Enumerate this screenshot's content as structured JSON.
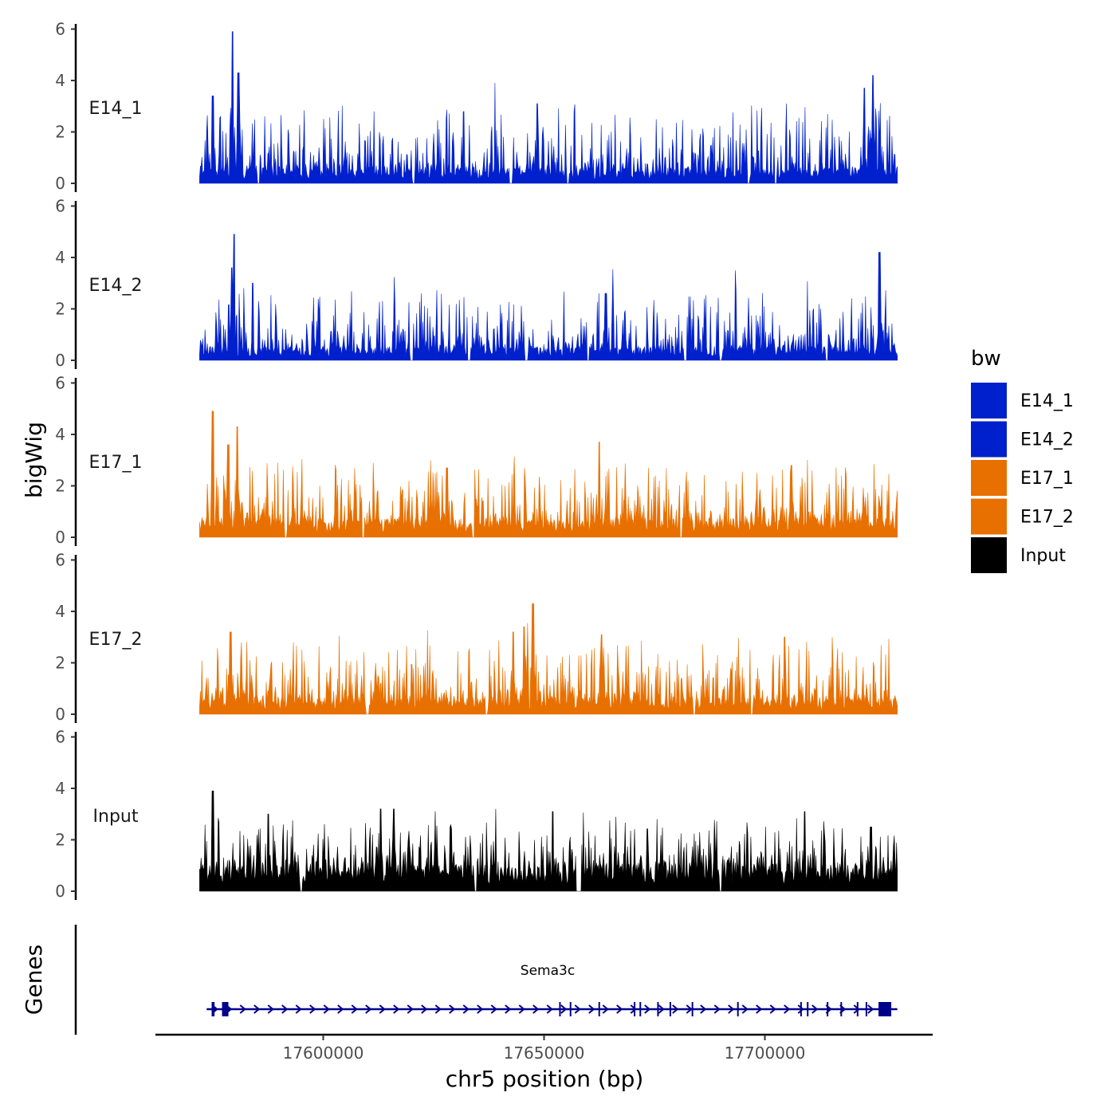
{
  "chart_data": {
    "type": "area",
    "chromosome": "chr5",
    "xlabel": "chr5 position (bp)",
    "ylabel": "bigWig",
    "genes_label": "Genes",
    "region": [
      17572000,
      17730000
    ],
    "xlim": [
      17562000,
      17738000
    ],
    "x_ticks": [
      17600000,
      17650000,
      17700000
    ],
    "x_tick_labels": [
      "17600000",
      "17650000",
      "17700000"
    ],
    "ylim": [
      0,
      6.2
    ],
    "y_ticks": [
      0,
      2,
      4,
      6
    ],
    "y_tick_labels": [
      "0",
      "2",
      "4",
      "6"
    ],
    "legend_title": "bw",
    "legend": [
      {
        "label": "E14_1",
        "color": "#0020cd"
      },
      {
        "label": "E14_2",
        "color": "#0020cd"
      },
      {
        "label": "E17_1",
        "color": "#e87000"
      },
      {
        "label": "E17_2",
        "color": "#e87000"
      },
      {
        "label": "Input",
        "color": "#000000"
      }
    ],
    "series": [
      {
        "name": "E14_1",
        "color": "#0020cd",
        "seed": 11,
        "base": 0.5,
        "spread": 1.6,
        "peaks": [
          [
            17579500,
            5.9
          ],
          [
            17580800,
            4.3
          ],
          [
            17575000,
            3.4
          ],
          [
            17648500,
            3.1
          ],
          [
            17722500,
            3.7
          ],
          [
            17724500,
            4.2
          ]
        ],
        "gaps": [
          17585300,
          17620500,
          17642500,
          17655400,
          17696300,
          17702500
        ]
      },
      {
        "name": "E14_2",
        "color": "#0020cd",
        "seed": 23,
        "base": 0.45,
        "spread": 1.5,
        "peaks": [
          [
            17579800,
            4.9
          ],
          [
            17579300,
            3.6
          ],
          [
            17584000,
            3.0
          ],
          [
            17664000,
            2.6
          ],
          [
            17726000,
            4.2
          ]
        ],
        "gaps": [
          17620000,
          17633000,
          17646000,
          17660000,
          17682000,
          17690000,
          17714000
        ]
      },
      {
        "name": "E17_1",
        "color": "#e87000",
        "seed": 37,
        "base": 0.65,
        "spread": 1.5,
        "peaks": [
          [
            17575000,
            4.9
          ],
          [
            17580500,
            4.3
          ],
          [
            17578500,
            3.6
          ],
          [
            17662500,
            3.7
          ],
          [
            17628000,
            2.7
          ],
          [
            17706000,
            2.8
          ]
        ],
        "gaps": [
          17591500,
          17609000,
          17634000,
          17681000
        ]
      },
      {
        "name": "E17_2",
        "color": "#e87000",
        "seed": 53,
        "base": 0.55,
        "spread": 1.5,
        "peaks": [
          [
            17647500,
            4.3
          ],
          [
            17645500,
            3.4
          ],
          [
            17643000,
            3.2
          ],
          [
            17579000,
            3.2
          ],
          [
            17663000,
            3.1
          ],
          [
            17704500,
            3.0
          ]
        ],
        "gaps": [
          17610000,
          17637000,
          17684000,
          17697000
        ]
      },
      {
        "name": "Input",
        "color": "#000000",
        "seed": 71,
        "base": 0.85,
        "spread": 1.3,
        "peaks": [
          [
            17575000,
            3.9
          ],
          [
            17587500,
            3.0
          ],
          [
            17613000,
            3.2
          ],
          [
            17616000,
            3.2
          ],
          [
            17652000,
            3.1
          ],
          [
            17709000,
            3.1
          ],
          [
            17724000,
            2.5
          ]
        ],
        "gaps": [
          17595000,
          17634500,
          17657600,
          17658100,
          17690000
        ]
      }
    ],
    "gene": {
      "name": "Sema3c",
      "start": 17573600,
      "end": 17730000,
      "strand": "+",
      "color": "#00008b",
      "exons": [
        17575200,
        17577800,
        17653600,
        17656000,
        17662500,
        17670500,
        17671800,
        17675800,
        17678600,
        17683600,
        17693900,
        17708200,
        17709700,
        17714200,
        17717300,
        17721000,
        17723000
      ]
    }
  }
}
